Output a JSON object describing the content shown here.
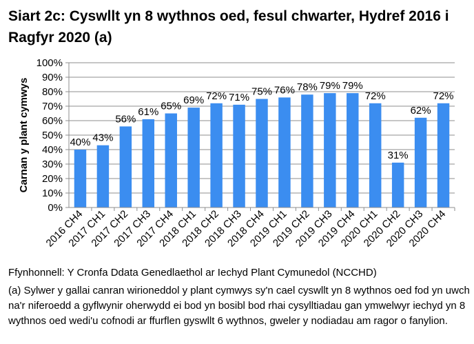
{
  "title": "Siart 2c: Cyswllt yn 8 wythnos oed, fesul chwarter, Hydref 2016 i Ragfyr 2020 (a)",
  "source": "Ffynhonnell: Y Cronfa Ddata Genedlaethol ar Iechyd Plant Cymunedol (NCCHD)",
  "note": "(a) Sylwer y gallai canran wirioneddol y plant cymwys sy'n cael cyswllt yn 8 wythnos oed fod yn uwch na'r niferoedd a gyflwynir oherwydd ei bod yn bosibl bod rhai cysylltiadau gan ymwelwyr iechyd yn 8 wythnos oed wedi'u cofnodi ar ffurflen gyswllt 6 wythnos, gweler y nodiadau am ragor o fanylion.",
  "chart_data": {
    "type": "bar",
    "title": "Siart 2c: Cyswllt yn 8 wythnos oed, fesul chwarter, Hydref 2016 i Ragfyr 2020 (a)",
    "xlabel": "",
    "ylabel": "Carnan y plant cymwys",
    "ylim": [
      0,
      100
    ],
    "ytick_labels": [
      "0%",
      "10%",
      "20%",
      "30%",
      "40%",
      "50%",
      "60%",
      "70%",
      "80%",
      "90%",
      "100%"
    ],
    "grid": true,
    "categories": [
      "2016 CH4",
      "2017 CH1",
      "2017 CH2",
      "2017 CH3",
      "2017 CH4",
      "2018 CH1",
      "2018 CH2",
      "2018 CH3",
      "2018 CH4",
      "2019 CH1",
      "2019 CH2",
      "2019 CH3",
      "2019 CH4",
      "2020 CH1",
      "2020 CH2",
      "2020 CH3",
      "2020 CH4"
    ],
    "values": [
      40,
      43,
      56,
      61,
      65,
      69,
      72,
      71,
      75,
      76,
      78,
      79,
      79,
      72,
      31,
      62,
      72
    ],
    "data_labels": [
      "40%",
      "43%",
      "56%",
      "61%",
      "65%",
      "69%",
      "72%",
      "71%",
      "75%",
      "76%",
      "78%",
      "79%",
      "79%",
      "72%",
      "31%",
      "62%",
      "72%"
    ],
    "bar_color": "#3b8df0"
  }
}
